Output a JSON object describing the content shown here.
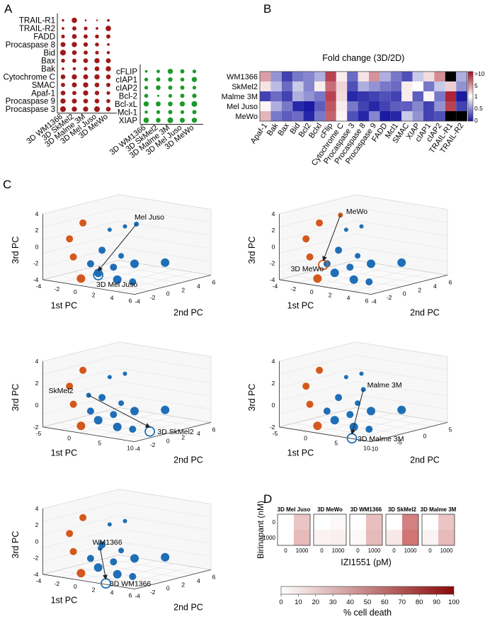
{
  "panel_labels": {
    "a": "A",
    "b": "B",
    "c": "C",
    "d": "D"
  },
  "colors": {
    "dot_red": "#9e1a1a",
    "dot_green": "#1e9a2a",
    "pc_blue": "#1f6fb7",
    "pc_orange": "#d4581c",
    "heat_high": "#a30d1f",
    "heat_low": "#1a1aa3",
    "heat_mid": "#ffffff",
    "heat_sat": "#000000"
  },
  "chart_data": [
    {
      "id": "A-left",
      "type": "scatter",
      "subtype": "dot-matrix",
      "rows": [
        "TRAIL-R1",
        "TRAIL-R2",
        "FADD",
        "Procaspase 8",
        "Bid",
        "Bax",
        "Bak",
        "Cytochrome C",
        "SMAC",
        "Apaf-1",
        "Procaspase 9",
        "Procaspase 3"
      ],
      "columns": [
        "3D WM1366",
        "3D SkMel2",
        "3D Malme 3M",
        "3D Mel Juso",
        "3D MeWo"
      ],
      "values": [
        [
          0.25,
          0.85,
          0.15,
          0.1,
          0.3
        ],
        [
          0.3,
          0.6,
          0.5,
          0.3,
          0.85
        ],
        [
          0.5,
          0.7,
          0.6,
          0.55,
          0.6
        ],
        [
          0.75,
          0.8,
          0.65,
          0.55,
          0.3
        ],
        [
          0.9,
          0.7,
          0.6,
          0.5,
          0.4
        ],
        [
          0.55,
          0.6,
          0.7,
          0.8,
          0.75
        ],
        [
          0.3,
          0.4,
          0.5,
          0.7,
          0.8
        ],
        [
          0.7,
          0.8,
          0.75,
          0.8,
          0.7
        ],
        [
          0.6,
          0.75,
          0.8,
          0.7,
          0.6
        ],
        [
          0.7,
          0.6,
          0.8,
          0.65,
          0.5
        ],
        [
          0.8,
          0.75,
          0.7,
          0.7,
          0.55
        ],
        [
          0.9,
          0.8,
          0.8,
          0.9,
          0.7
        ]
      ]
    },
    {
      "id": "A-right",
      "type": "scatter",
      "subtype": "dot-matrix",
      "rows": [
        "cFLIP",
        "cIAP1",
        "cIAP2",
        "Bcl-2",
        "Bcl-xL",
        "Mcl-1",
        "XIAP"
      ],
      "columns": [
        "3D WM1366",
        "3D SkMel2",
        "3D Malme 3M",
        "3D Mel Juso",
        "3D MeWo"
      ],
      "values": [
        [
          0.3,
          0.45,
          0.8,
          0.6,
          0.5
        ],
        [
          0.5,
          0.6,
          0.65,
          0.55,
          0.8
        ],
        [
          0.5,
          0.7,
          0.6,
          0.6,
          0.5
        ],
        [
          0.55,
          0.2,
          0.5,
          0.6,
          0.65
        ],
        [
          0.8,
          0.75,
          0.7,
          0.8,
          0.9
        ],
        [
          0.4,
          0.5,
          0.6,
          0.5,
          0.6
        ],
        [
          0.85,
          0.7,
          0.9,
          0.75,
          0.8
        ]
      ]
    },
    {
      "id": "B",
      "type": "heatmap",
      "title": "Fold change (3D/2D)",
      "rows": [
        "WM1366",
        "SkMel2",
        "Malme 3M",
        "Mel Juso",
        "MeWo"
      ],
      "columns": [
        "Apaf-1",
        "Bak",
        "Bax",
        "Bid",
        "Bcl2",
        "Bclxl",
        "cFlip",
        "Cytochrome C",
        "Procaspase 3",
        "Procaspase 8",
        "Procaspase 9",
        "FADD",
        "Mcl1",
        "SMAC",
        "XIAP",
        "cIAP1",
        "cIAP2",
        "TRAIL-R1",
        "TRAIL-R2"
      ],
      "values": [
        [
          2.5,
          0.6,
          0.3,
          0.5,
          0.55,
          0.7,
          6.0,
          1.2,
          0.45,
          1.3,
          2.8,
          0.7,
          0.5,
          0.35,
          0.8,
          1.4,
          3.0,
          12,
          0.7
        ],
        [
          1.3,
          0.75,
          0.45,
          0.8,
          0.55,
          1.2,
          4.0,
          1.5,
          0.35,
          0.7,
          0.6,
          0.5,
          0.45,
          1.2,
          1.0,
          0.5,
          0.8,
          1.6,
          0.6
        ],
        [
          0.3,
          0.45,
          0.3,
          0.7,
          0.6,
          0.5,
          6.0,
          1.4,
          0.2,
          0.25,
          0.3,
          0.35,
          0.3,
          1.2,
          0.4,
          1.1,
          0.5,
          8,
          0.1
        ],
        [
          1.1,
          0.7,
          0.5,
          0.2,
          0.15,
          0.4,
          5.0,
          1.2,
          0.5,
          0.3,
          0.2,
          0.3,
          0.4,
          0.4,
          0.55,
          0.3,
          0.6,
          6.0,
          0.3
        ],
        [
          2.0,
          0.5,
          0.4,
          0.45,
          0.2,
          0.5,
          4.5,
          1.1,
          0.35,
          0.2,
          0.55,
          0.15,
          0.2,
          0.8,
          0.6,
          0.3,
          0.35,
          12,
          12
        ]
      ],
      "colorbar_ticks": [
        ">10",
        "5",
        "1",
        "0.5",
        "0"
      ]
    },
    {
      "id": "C",
      "type": "scatter",
      "subtype": "3d-pca",
      "plots": [
        {
          "label": "Mel Juso",
          "label3d": "3D Mel Juso",
          "xlabel_1": "1st PC",
          "xlabel_2": "2nd PC",
          "zlabel": "3rd PC",
          "ticks_pc1": [
            "-4",
            "-2",
            "0",
            "2",
            "4",
            "6"
          ],
          "ticks_pc2": [
            "-4",
            "-2",
            "0",
            "2",
            "4",
            "6"
          ],
          "ticks_pc3": [
            "4",
            "2",
            "0",
            "-2",
            "-4"
          ]
        },
        {
          "label": "MeWo",
          "label3d": "3D MeWo",
          "xlabel_1": "1st PC",
          "xlabel_2": "2nd PC",
          "zlabel": "3rd PC",
          "ticks_pc1": [
            "-4",
            "-2",
            "0",
            "2",
            "4",
            "6"
          ],
          "ticks_pc2": [
            "-4",
            "-2",
            "0",
            "2",
            "4",
            "6"
          ],
          "ticks_pc3": [
            "4",
            "2",
            "0",
            "-2",
            "-4"
          ]
        },
        {
          "label": "SkMel2",
          "label3d": "3D SkMel2",
          "xlabel_1": "1st PC",
          "xlabel_2": "2nd PC",
          "zlabel": "3rd PC",
          "ticks_pc1": [
            "-5",
            "0",
            "5",
            "10"
          ],
          "ticks_pc2": [
            "-4",
            "-2",
            "0",
            "2",
            "4",
            "6"
          ],
          "ticks_pc3": [
            "4",
            "2",
            "0",
            "-2"
          ]
        },
        {
          "label": "Malme 3M",
          "label3d": "3D Malme 3M",
          "xlabel_1": "1st PC",
          "xlabel_2": "2nd PC",
          "zlabel": "3rd PC",
          "ticks_pc1": [
            "-5",
            "0",
            "5",
            "10"
          ],
          "ticks_pc2": [
            "-10",
            "-5",
            "0",
            "5"
          ],
          "ticks_pc3": [
            "4",
            "2",
            "0",
            "-2"
          ]
        },
        {
          "label": "WM1366",
          "label3d": "3D WM1366",
          "xlabel_1": "1st PC",
          "xlabel_2": "2nd PC",
          "zlabel": "3rd PC",
          "ticks_pc1": [
            "-4",
            "-2",
            "0",
            "2",
            "4",
            "6"
          ],
          "ticks_pc2": [
            "-4",
            "-2",
            "0",
            "2",
            "4",
            "6"
          ],
          "ticks_pc3": [
            "4",
            "2",
            "0",
            "-2",
            "-4"
          ]
        }
      ]
    },
    {
      "id": "D",
      "type": "heatmap",
      "ylabel": "Birinapant (nM)",
      "xlabel": "IZI1551 (pM)",
      "colorbar_label": "% cell death",
      "colorbar_ticks": [
        "0",
        "10",
        "20",
        "30",
        "40",
        "50",
        "60",
        "70",
        "80",
        "90",
        "100"
      ],
      "row_ticks": [
        "0",
        "1000"
      ],
      "col_ticks": [
        "0",
        "1000"
      ],
      "panels": [
        {
          "title": "3D Mel Juso",
          "values": [
            [
              0,
              25
            ],
            [
              0,
              30
            ]
          ]
        },
        {
          "title": "3D MeWo",
          "values": [
            [
              0,
              3
            ],
            [
              5,
              7
            ]
          ]
        },
        {
          "title": "3D WM1366",
          "values": [
            [
              0,
              28
            ],
            [
              3,
              30
            ]
          ]
        },
        {
          "title": "3D SkMel2",
          "values": [
            [
              0,
              55
            ],
            [
              10,
              60
            ]
          ]
        },
        {
          "title": "3D Malme 3M",
          "values": [
            [
              0,
              25
            ],
            [
              5,
              30
            ]
          ]
        }
      ]
    }
  ]
}
